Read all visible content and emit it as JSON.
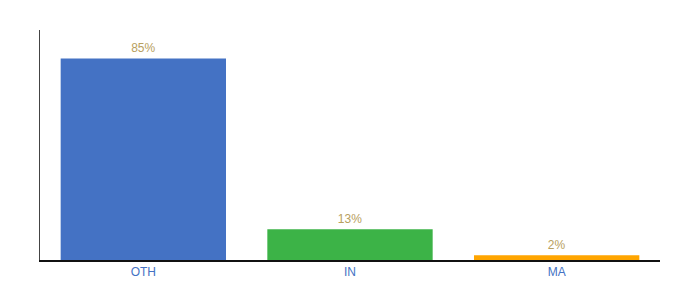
{
  "chart_data": {
    "type": "bar",
    "categories": [
      "OTH",
      "IN",
      "MA"
    ],
    "values": [
      85,
      13,
      2
    ],
    "value_labels": [
      "85%",
      "13%",
      "2%"
    ],
    "data_labels": true,
    "colors": [
      "#4472C4",
      "#3CB347",
      "#FFA500"
    ],
    "ylim": [
      0,
      97
    ],
    "yticks": [],
    "tick_labels": "x",
    "grid": false
  }
}
